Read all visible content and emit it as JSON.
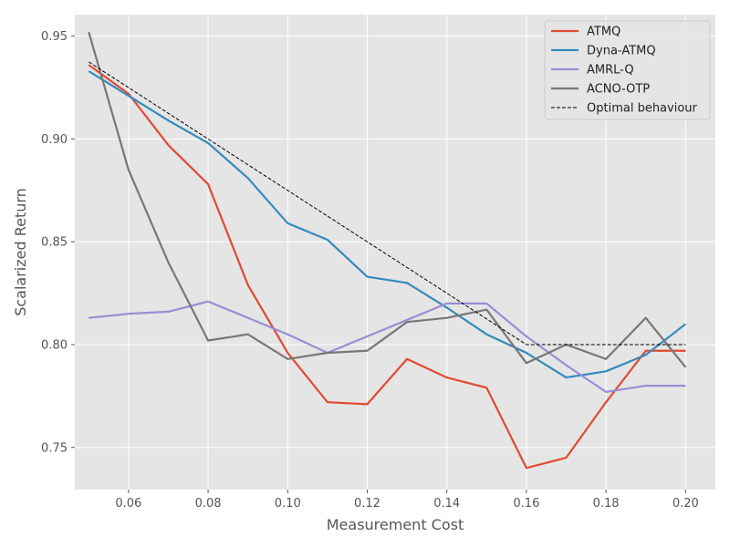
{
  "chart_data": {
    "type": "line",
    "title": "",
    "xlabel": "Measurement Cost",
    "ylabel": "Scalarized Return",
    "xlim": [
      0.0465,
      0.2075
    ],
    "ylim": [
      0.7295,
      0.9605
    ],
    "x_ticks": [
      0.06,
      0.08,
      0.1,
      0.12,
      0.14,
      0.16,
      0.18,
      0.2
    ],
    "x_tick_labels": [
      "0.06",
      "0.08",
      "0.10",
      "0.12",
      "0.14",
      "0.16",
      "0.18",
      "0.20"
    ],
    "y_ticks": [
      0.75,
      0.8,
      0.85,
      0.9,
      0.95
    ],
    "y_tick_labels": [
      "0.75",
      "0.80",
      "0.85",
      "0.90",
      "0.95"
    ],
    "grid": true,
    "legend_position": "top-right",
    "x": [
      0.05,
      0.06,
      0.07,
      0.08,
      0.09,
      0.1,
      0.11,
      0.12,
      0.13,
      0.14,
      0.15,
      0.16,
      0.17,
      0.18,
      0.19,
      0.2
    ],
    "series": [
      {
        "name": "ATMQ",
        "color": "#E24A33",
        "dashed": false,
        "values": [
          0.936,
          0.922,
          0.897,
          0.878,
          0.829,
          0.796,
          0.772,
          0.771,
          0.793,
          0.784,
          0.779,
          0.74,
          0.745,
          0.772,
          0.797,
          0.797
        ]
      },
      {
        "name": "Dyna-ATMQ",
        "color": "#348ABD",
        "dashed": false,
        "values": [
          0.933,
          0.921,
          0.909,
          0.898,
          0.881,
          0.859,
          0.851,
          0.833,
          0.83,
          0.818,
          0.805,
          0.796,
          0.784,
          0.787,
          0.795,
          0.81
        ]
      },
      {
        "name": "AMRL-Q",
        "color": "#988ED5",
        "dashed": false,
        "values": [
          0.813,
          0.815,
          0.816,
          0.821,
          0.813,
          0.805,
          0.796,
          0.804,
          0.812,
          0.82,
          0.82,
          0.804,
          0.79,
          0.777,
          0.78,
          0.78
        ]
      },
      {
        "name": "ACNO-OTP",
        "color": "#777777",
        "dashed": false,
        "values": [
          0.952,
          0.885,
          0.84,
          0.802,
          0.805,
          0.793,
          0.796,
          0.797,
          0.811,
          0.813,
          0.817,
          0.791,
          0.8,
          0.793,
          0.813,
          0.789
        ]
      },
      {
        "name": "Optimal behaviour",
        "color": "#000000",
        "dashed": true,
        "values": [
          0.9375,
          0.925,
          0.9125,
          0.9,
          0.8875,
          0.875,
          0.8625,
          0.85,
          0.8375,
          0.825,
          0.8125,
          0.8,
          0.8,
          0.8,
          0.8,
          0.8
        ]
      }
    ]
  }
}
